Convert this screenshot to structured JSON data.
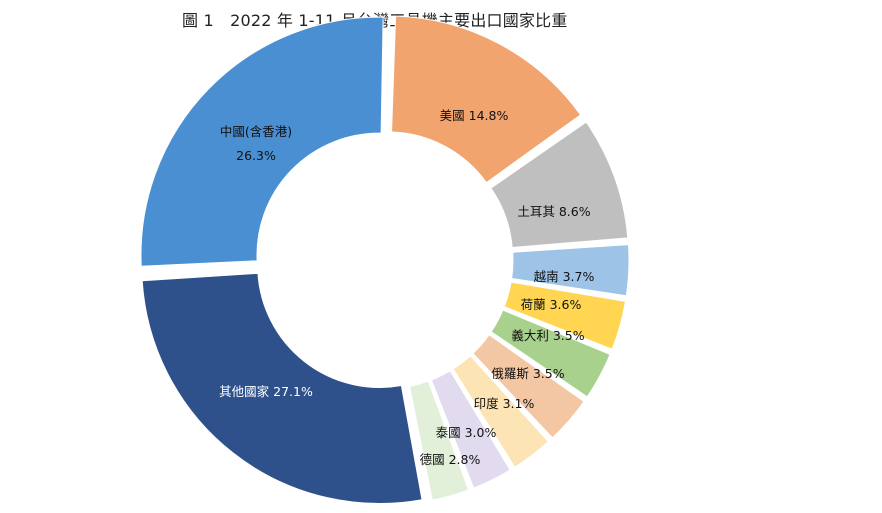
{
  "chart_data": {
    "type": "pie",
    "variant": "donut",
    "title": "圖 1　2022 年 1-11 月台灣工具機主要出口國家比重",
    "slices": [
      {
        "label": "美國",
        "value": 14.8,
        "display": "美國 14.8%",
        "color": "#F2A46E"
      },
      {
        "label": "土耳其",
        "value": 8.6,
        "display": "土耳其 8.6%",
        "color": "#BFBFBF"
      },
      {
        "label": "越南",
        "value": 3.7,
        "display": "越南 3.7%",
        "color": "#9DC3E6"
      },
      {
        "label": "荷蘭",
        "value": 3.6,
        "display": "荷蘭 3.6%",
        "color": "#FFD551"
      },
      {
        "label": "義大利",
        "value": 3.5,
        "display": "義大利 3.5%",
        "color": "#A9D18E"
      },
      {
        "label": "俄羅斯",
        "value": 3.5,
        "display": "俄羅斯 3.5%",
        "color": "#F4C7A4"
      },
      {
        "label": "印度",
        "value": 3.1,
        "display": "印度 3.1%",
        "color": "#FCE4B5"
      },
      {
        "label": "泰國",
        "value": 3.0,
        "display": "泰國 3.0%",
        "color": "#E2DAEE"
      },
      {
        "label": "德國",
        "value": 2.8,
        "display": "德國 2.8%",
        "color": "#E2EFD9"
      },
      {
        "label": "其他國家",
        "value": 27.1,
        "display": "其他國家 27.1%",
        "color": "#2E518B"
      },
      {
        "label": "中國(含香港)",
        "value": 26.3,
        "display_lines": [
          "中國(含香港)",
          "26.3%"
        ],
        "color": "#4A8FD1"
      }
    ]
  }
}
